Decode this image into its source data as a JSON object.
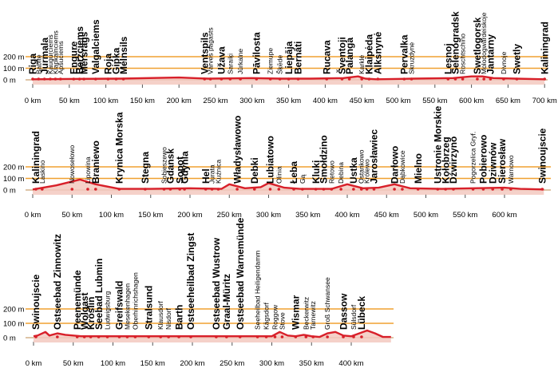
{
  "colors": {
    "profile": "#d8202a",
    "grid": "#f0a030",
    "fill": "#f3c9c0"
  },
  "chart_data": [
    {
      "type": "area",
      "title": "",
      "xlabel": "",
      "ylabel": "",
      "xlim": [
        0,
        700
      ],
      "ylim": [
        0,
        200
      ],
      "x_ticks": [
        0,
        50,
        100,
        150,
        200,
        250,
        300,
        350,
        400,
        450,
        500,
        550,
        600,
        650,
        700
      ],
      "x_tick_labels": [
        "0 km",
        "50 km",
        "100 km",
        "150 km",
        "200 km",
        "250 km",
        "300 km",
        "350 km",
        "400 km",
        "450 km",
        "500 km",
        "550 km",
        "600 km",
        "650 km",
        "700 km"
      ],
      "y_ticks": [
        0,
        100,
        200
      ],
      "y_tick_labels": [
        "0 m",
        "100 m",
        "200 m"
      ],
      "elevation_profile": {
        "x": [
          0,
          60,
          120,
          200,
          240,
          300,
          340,
          380,
          425,
          445,
          455,
          470,
          520,
          575,
          600,
          615,
          630,
          660,
          700
        ],
        "y": [
          5,
          8,
          10,
          20,
          10,
          15,
          10,
          10,
          15,
          30,
          10,
          5,
          10,
          15,
          30,
          30,
          15,
          10,
          5
        ]
      },
      "towns": [
        {
          "name": "Riga",
          "km": 0,
          "major": true
        },
        {
          "name": "Babīte",
          "km": 8,
          "major": false
        },
        {
          "name": "Jurmala",
          "km": 16,
          "major": true
        },
        {
          "name": "Kaugurciems",
          "km": 24,
          "major": false
        },
        {
          "name": "Klapkalnciems",
          "km": 31,
          "major": false
        },
        {
          "name": "Apšuciems",
          "km": 38,
          "major": false
        },
        {
          "name": "Engure",
          "km": 56,
          "major": true
        },
        {
          "name": "Bērzciems",
          "km": 64,
          "major": true
        },
        {
          "name": "Mērsrags",
          "km": 70,
          "major": true
        },
        {
          "name": "Valgalciems",
          "km": 86,
          "major": true
        },
        {
          "name": "Roja",
          "km": 103,
          "major": true
        },
        {
          "name": "Gipka",
          "km": 114,
          "major": true
        },
        {
          "name": "Melnsils",
          "km": 124,
          "major": true
        },
        {
          "name": "Ventspils",
          "km": 235,
          "major": true
        },
        {
          "name": "Vārves pagasts",
          "km": 243,
          "major": false
        },
        {
          "name": "Užava",
          "km": 258,
          "major": true
        },
        {
          "name": "Saraiķi",
          "km": 270,
          "major": false
        },
        {
          "name": "Jūrkalne",
          "km": 284,
          "major": false
        },
        {
          "name": "Pāvilosta",
          "km": 306,
          "major": true
        },
        {
          "name": "Ziemupe",
          "km": 325,
          "major": false
        },
        {
          "name": "Šķēde",
          "km": 338,
          "major": false
        },
        {
          "name": "Liepāja",
          "km": 350,
          "major": true
        },
        {
          "name": "Bernāti",
          "km": 363,
          "major": true
        },
        {
          "name": "Rucava",
          "km": 402,
          "major": true
        },
        {
          "name": "Šventoji",
          "km": 423,
          "major": true
        },
        {
          "name": "Palanga",
          "km": 433,
          "major": true
        },
        {
          "name": "Karklė",
          "km": 450,
          "major": false
        },
        {
          "name": "Klaipėda",
          "km": 460,
          "major": true
        },
        {
          "name": "Alksnynė",
          "km": 472,
          "major": true
        },
        {
          "name": "Pervalka",
          "km": 508,
          "major": true
        },
        {
          "name": "Skruzdynė",
          "km": 518,
          "major": false
        },
        {
          "name": "Lesnoj",
          "km": 568,
          "major": true
        },
        {
          "name": "Selenogradsk",
          "km": 578,
          "major": true
        },
        {
          "name": "Roschtschino",
          "km": 588,
          "major": false
        },
        {
          "name": "Swetlogorsk",
          "km": 608,
          "major": true
        },
        {
          "name": "Molodogwardeiskoje",
          "km": 617,
          "major": false
        },
        {
          "name": "Jantarny",
          "km": 626,
          "major": true
        },
        {
          "name": "Divnoje",
          "km": 644,
          "major": false
        },
        {
          "name": "Swetly",
          "km": 662,
          "major": true
        },
        {
          "name": "Kaliningrad",
          "km": 700,
          "major": true
        }
      ]
    },
    {
      "type": "area",
      "title": "",
      "xlabel": "",
      "ylabel": "",
      "xlim": [
        0,
        650
      ],
      "ylim": [
        0,
        200
      ],
      "x_ticks": [
        0,
        50,
        100,
        150,
        200,
        250,
        300,
        350,
        400,
        450,
        500,
        550,
        600
      ],
      "x_tick_labels": [
        "0 km",
        "50 km",
        "100 km",
        "150 km",
        "200 km",
        "250 km",
        "300 km",
        "350 km",
        "400 km",
        "450 km",
        "500 km",
        "550 km",
        "600 km"
      ],
      "y_ticks": [
        0,
        100,
        200
      ],
      "y_tick_labels": [
        "0 m",
        "100 m",
        "200 m"
      ],
      "elevation_profile": {
        "x": [
          0,
          30,
          60,
          80,
          110,
          150,
          200,
          240,
          250,
          270,
          290,
          300,
          320,
          340,
          360,
          380,
          400,
          420,
          440,
          460,
          480,
          520,
          560,
          600,
          620,
          650
        ],
        "y": [
          5,
          40,
          90,
          50,
          10,
          10,
          15,
          10,
          50,
          15,
          25,
          60,
          20,
          10,
          10,
          10,
          50,
          15,
          20,
          50,
          15,
          10,
          15,
          20,
          10,
          5
        ]
      },
      "towns": [
        {
          "name": "Kaliningrad",
          "km": 4,
          "major": true
        },
        {
          "name": "Laskino",
          "km": 12,
          "major": false
        },
        {
          "name": "Nowosełowo",
          "km": 50,
          "major": false
        },
        {
          "name": "Lipowina",
          "km": 70,
          "major": false
        },
        {
          "name": "Braniewo",
          "km": 80,
          "major": true
        },
        {
          "name": "Krynica Morska",
          "km": 110,
          "major": true
        },
        {
          "name": "Stegna",
          "km": 143,
          "major": true
        },
        {
          "name": "Sobieszewo",
          "km": 167,
          "major": false
        },
        {
          "name": "Gdansk",
          "km": 175,
          "major": true
        },
        {
          "name": "Sopot",
          "km": 187,
          "major": true
        },
        {
          "name": "Gdynia",
          "km": 193,
          "major": true
        },
        {
          "name": "Hel",
          "km": 220,
          "major": true
        },
        {
          "name": "Jurata",
          "km": 228,
          "major": false
        },
        {
          "name": "Kuźnica",
          "km": 236,
          "major": false
        },
        {
          "name": "Władysławowo",
          "km": 260,
          "major": true
        },
        {
          "name": "Debki",
          "km": 282,
          "major": true
        },
        {
          "name": "Lubiatowo",
          "km": 302,
          "major": true
        },
        {
          "name": "Olinia",
          "km": 313,
          "major": false
        },
        {
          "name": "Łeba",
          "km": 332,
          "major": true
        },
        {
          "name": "Gą",
          "km": 343,
          "major": false
        },
        {
          "name": "Kluki",
          "km": 360,
          "major": true
        },
        {
          "name": "Smołdzino",
          "km": 370,
          "major": true
        },
        {
          "name": "Retowo",
          "km": 380,
          "major": false
        },
        {
          "name": "Debina",
          "km": 392,
          "major": false
        },
        {
          "name": "Ustka",
          "km": 408,
          "major": true
        },
        {
          "name": "Ostankowo",
          "km": 418,
          "major": false
        },
        {
          "name": "Królewo",
          "km": 425,
          "major": false
        },
        {
          "name": "Jarosławiec",
          "km": 434,
          "major": true
        },
        {
          "name": "Darłowo",
          "km": 460,
          "major": true
        },
        {
          "name": "Dąbkowice",
          "km": 470,
          "major": false
        },
        {
          "name": "Mielno",
          "km": 490,
          "major": true
        },
        {
          "name": "Ustronie Morskie",
          "km": 515,
          "major": true
        },
        {
          "name": "Kołobrzeg",
          "km": 525,
          "major": true
        },
        {
          "name": "Dźwirzyno",
          "km": 535,
          "major": true
        },
        {
          "name": "Pogorzelica Gryf.",
          "km": 560,
          "major": false
        },
        {
          "name": "Pobierowo",
          "km": 573,
          "major": true
        },
        {
          "name": "Dziwnów",
          "km": 585,
          "major": true
        },
        {
          "name": "Sierosław",
          "km": 597,
          "major": true
        },
        {
          "name": "Warnowo",
          "km": 608,
          "major": false
        },
        {
          "name": "Swinoujscie",
          "km": 648,
          "major": true
        }
      ]
    },
    {
      "type": "area",
      "title": "",
      "xlabel": "",
      "ylabel": "",
      "xlim": [
        0,
        450
      ],
      "ylim": [
        0,
        200
      ],
      "x_ticks": [
        0,
        50,
        100,
        150,
        200,
        250,
        300,
        350,
        400
      ],
      "x_tick_labels": [
        "0 km",
        "50 km",
        "100 km",
        "150 km",
        "200 km",
        "250 km",
        "300 km",
        "350 km",
        "400 km"
      ],
      "y_ticks": [
        0,
        100,
        200
      ],
      "y_tick_labels": [
        "0 m",
        "100 m",
        "200 m"
      ],
      "elevation_profile": {
        "x": [
          0,
          5,
          15,
          20,
          30,
          40,
          60,
          100,
          150,
          200,
          250,
          300,
          310,
          320,
          330,
          340,
          350,
          360,
          370,
          380,
          390,
          400,
          420,
          430,
          440,
          450
        ],
        "y": [
          10,
          15,
          40,
          15,
          30,
          20,
          10,
          10,
          10,
          10,
          10,
          10,
          40,
          15,
          10,
          20,
          10,
          5,
          30,
          40,
          15,
          10,
          50,
          30,
          5,
          5
        ]
      },
      "towns": [
        {
          "name": "Swinoujscie",
          "km": 3,
          "major": true
        },
        {
          "name": "Ostseebad Zinnowitz",
          "km": 30,
          "major": true
        },
        {
          "name": "Peenemünde",
          "km": 55,
          "major": true
        },
        {
          "name": "Wolgast",
          "km": 64,
          "major": true
        },
        {
          "name": "Kröslin",
          "km": 72,
          "major": true
        },
        {
          "name": "Seebad Lubmin",
          "km": 82,
          "major": true
        },
        {
          "name": "Ludwigsburg",
          "km": 93,
          "major": false
        },
        {
          "name": "Greifswald",
          "km": 108,
          "major": true
        },
        {
          "name": "Mesekenhagen",
          "km": 118,
          "major": false
        },
        {
          "name": "Oberhinrichshagen",
          "km": 128,
          "major": false
        },
        {
          "name": "Stralsund",
          "km": 145,
          "major": true
        },
        {
          "name": "Klausdorf",
          "km": 160,
          "major": false
        },
        {
          "name": "Nisdorf",
          "km": 170,
          "major": false
        },
        {
          "name": "Barth",
          "km": 183,
          "major": true
        },
        {
          "name": "Ostseeheilbad Zingst",
          "km": 198,
          "major": true
        },
        {
          "name": "Ostseebad Wustrow",
          "km": 230,
          "major": true
        },
        {
          "name": "Graal-Müritz",
          "km": 243,
          "major": true
        },
        {
          "name": "Ostseebad Warnemünde",
          "km": 260,
          "major": true
        },
        {
          "name": "Seeheilbad Heiligendamm",
          "km": 282,
          "major": false
        },
        {
          "name": "Kägsdorf",
          "km": 293,
          "major": false
        },
        {
          "name": "Roggow",
          "km": 304,
          "major": false
        },
        {
          "name": "Stove",
          "km": 313,
          "major": false
        },
        {
          "name": "Wismar",
          "km": 330,
          "major": true
        },
        {
          "name": "Beckerwitz",
          "km": 343,
          "major": false
        },
        {
          "name": "Tarnewitz",
          "km": 352,
          "major": false
        },
        {
          "name": "Groß Schwansee",
          "km": 370,
          "major": false
        },
        {
          "name": "Dassow",
          "km": 390,
          "major": true
        },
        {
          "name": "Sülsdorf",
          "km": 403,
          "major": false
        },
        {
          "name": "Lübeck",
          "km": 413,
          "major": true
        }
      ]
    }
  ]
}
